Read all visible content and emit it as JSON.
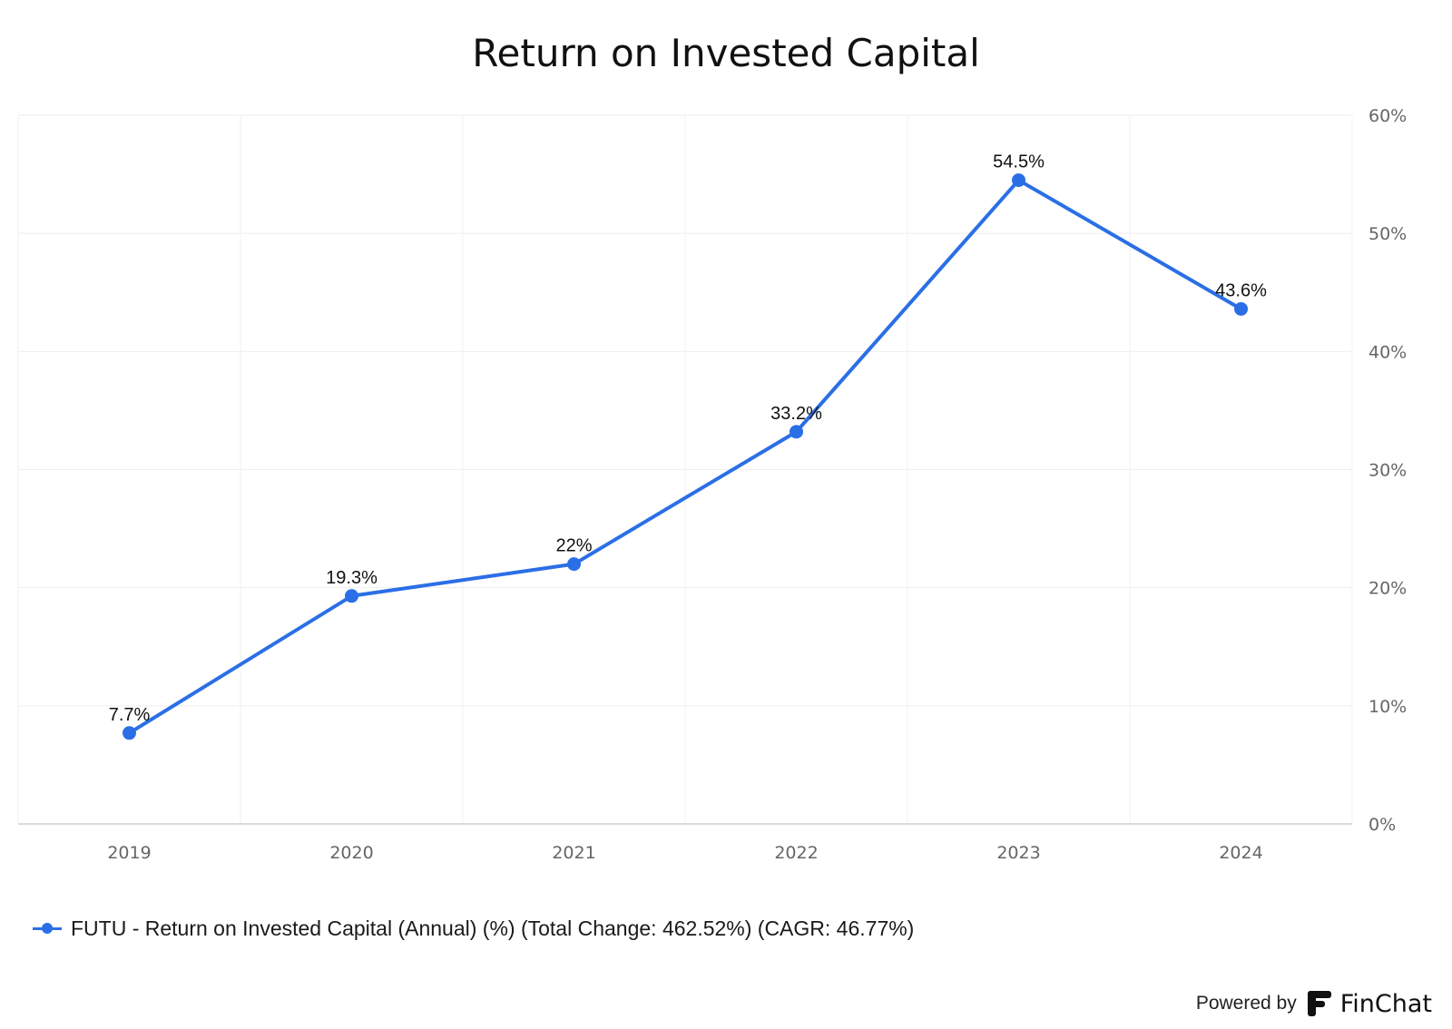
{
  "chart_data": {
    "type": "line",
    "title": "Return on Invested Capital",
    "categories": [
      "2019",
      "2020",
      "2021",
      "2022",
      "2023",
      "2024"
    ],
    "series": [
      {
        "name": "FUTU - Return on Invested Capital (Annual) (%) (Total Change: 462.52%) (CAGR: 46.77%)",
        "values": [
          7.7,
          19.3,
          22,
          33.2,
          54.5,
          43.6
        ],
        "labels": [
          "7.7%",
          "19.3%",
          "22%",
          "33.2%",
          "54.5%",
          "43.6%"
        ],
        "color": "#2b6fe6"
      }
    ],
    "ylim": [
      0,
      60
    ],
    "yticks": [
      0,
      10,
      20,
      30,
      40,
      50,
      60
    ],
    "ytick_labels": [
      "0%",
      "10%",
      "20%",
      "30%",
      "40%",
      "50%",
      "60%"
    ],
    "yaxis_side": "right",
    "grid": true,
    "legend_position": "bottom-left",
    "xlabel": "",
    "ylabel": ""
  },
  "footer": {
    "powered_by": "Powered by",
    "brand": "FinChat"
  }
}
